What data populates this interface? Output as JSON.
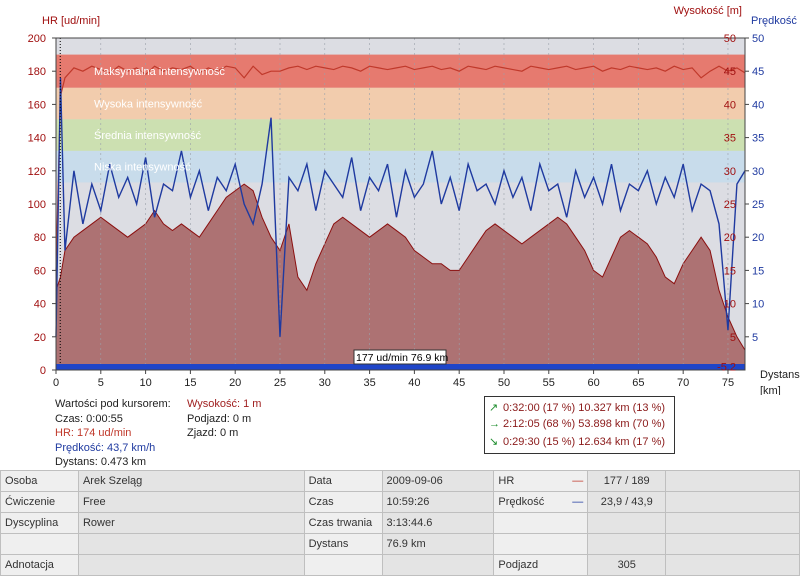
{
  "colors": {
    "hr_line": "#c0392b",
    "speed_line": "#1f3aa0",
    "altitude_fill": "#a45f5f",
    "zone_max": "#e8695a",
    "zone_high": "#f6c9a3",
    "zone_mid": "#c9e0a8",
    "zone_low": "#c4dcec",
    "zone_base": "#dcdde3"
  },
  "chart_data": {
    "type": "line",
    "axes": {
      "left_label": "HR [ud/min]",
      "right_label_1": "Wysokość [m]",
      "right_label_2": "Prędkość [",
      "x_label_1": "Dystans",
      "x_label_2": "[km]"
    },
    "left_ticks": [
      "0",
      "20",
      "40",
      "60",
      "80",
      "100",
      "120",
      "140",
      "160",
      "180",
      "200"
    ],
    "alt_ticks": [
      "-5.2",
      "5",
      "10",
      "15",
      "20",
      "25",
      "30",
      "35",
      "40",
      "45",
      "50"
    ],
    "speed_ticks": [
      "5",
      "10",
      "15",
      "20",
      "25",
      "30",
      "35",
      "40",
      "45",
      "50"
    ],
    "x_ticks": [
      "0",
      "5",
      "10",
      "15",
      "20",
      "25",
      "30",
      "35",
      "40",
      "45",
      "50",
      "55",
      "60",
      "65",
      "70",
      "75"
    ],
    "xlim": [
      0,
      76.9
    ],
    "hr_range": [
      0,
      200
    ],
    "speed_range": [
      0,
      50
    ],
    "zones": [
      {
        "name": "Maksymalna intensywność",
        "from": 170,
        "to": 190
      },
      {
        "name": "Wysoka intensywność",
        "from": 151,
        "to": 170
      },
      {
        "name": "Średnia intensywność",
        "from": 132,
        "to": 151
      },
      {
        "name": "Niska intensywność",
        "from": 113,
        "to": 132
      }
    ],
    "hr_series_name": "HR",
    "hr": {
      "x": [
        0,
        0.5,
        1,
        2,
        3,
        4,
        5,
        6,
        7,
        8,
        9,
        10,
        11,
        12,
        13,
        14,
        15,
        16,
        17,
        18,
        19,
        20,
        21,
        22,
        23,
        24,
        25,
        26,
        27,
        28,
        29,
        30,
        31,
        32,
        33,
        34,
        35,
        36,
        37,
        38,
        39,
        40,
        41,
        42,
        43,
        44,
        45,
        46,
        47,
        48,
        49,
        50,
        51,
        52,
        53,
        54,
        55,
        56,
        57,
        58,
        59,
        60,
        61,
        62,
        63,
        64,
        65,
        66,
        67,
        68,
        69,
        70,
        71,
        72,
        73,
        74,
        75,
        76,
        76.9
      ],
      "y": [
        60,
        165,
        176,
        182,
        180,
        183,
        181,
        179,
        183,
        180,
        182,
        178,
        183,
        180,
        182,
        181,
        183,
        179,
        182,
        180,
        183,
        182,
        176,
        183,
        178,
        180,
        180,
        182,
        183,
        181,
        183,
        182,
        181,
        183,
        182,
        180,
        183,
        182,
        181,
        182,
        183,
        181,
        182,
        183,
        181,
        182,
        180,
        183,
        182,
        181,
        183,
        182,
        181,
        180,
        183,
        182,
        181,
        182,
        183,
        181,
        182,
        183,
        180,
        182,
        181,
        183,
        182,
        181,
        182,
        180,
        183,
        181,
        182,
        176,
        180,
        183,
        180,
        182,
        179
      ]
    },
    "speed_series_name": "Prędkość",
    "speed": {
      "x": [
        0,
        0.5,
        1,
        2,
        3,
        4,
        5,
        6,
        7,
        8,
        9,
        10,
        11,
        12,
        13,
        14,
        15,
        16,
        17,
        18,
        19,
        20,
        21,
        22,
        23,
        24,
        25,
        26,
        27,
        28,
        29,
        30,
        31,
        32,
        33,
        34,
        35,
        36,
        37,
        38,
        39,
        40,
        41,
        42,
        43,
        44,
        45,
        46,
        47,
        48,
        49,
        50,
        51,
        52,
        53,
        54,
        55,
        56,
        57,
        58,
        59,
        60,
        61,
        62,
        63,
        64,
        65,
        66,
        67,
        68,
        69,
        70,
        71,
        72,
        73,
        74,
        75,
        76,
        76.9
      ],
      "y": [
        5,
        44,
        18,
        30,
        22,
        28,
        24,
        31,
        26,
        29,
        25,
        32,
        23,
        28,
        27,
        33,
        26,
        30,
        24,
        29,
        27,
        31,
        25,
        22,
        28,
        38,
        5,
        29,
        27,
        31,
        24,
        30,
        28,
        26,
        32,
        24,
        29,
        27,
        31,
        23,
        30,
        26,
        28,
        33,
        25,
        29,
        24,
        31,
        27,
        28,
        25,
        30,
        26,
        29,
        24,
        31,
        27,
        28,
        23,
        30,
        26,
        29,
        25,
        31,
        24,
        28,
        27,
        30,
        25,
        29,
        26,
        31,
        24,
        28,
        27,
        22,
        6,
        28,
        30
      ]
    },
    "altitude_series_name": "Wysokość",
    "altitude": {
      "x": [
        0,
        0.5,
        1,
        2,
        3,
        4,
        5,
        6,
        7,
        8,
        9,
        10,
        11,
        12,
        13,
        14,
        15,
        16,
        17,
        18,
        19,
        20,
        21,
        22,
        23,
        24,
        25,
        26,
        27,
        28,
        29,
        30,
        31,
        32,
        33,
        34,
        35,
        36,
        37,
        38,
        39,
        40,
        41,
        42,
        43,
        44,
        45,
        46,
        47,
        48,
        49,
        50,
        51,
        52,
        53,
        54,
        55,
        56,
        57,
        58,
        59,
        60,
        61,
        62,
        63,
        64,
        65,
        66,
        67,
        68,
        69,
        70,
        71,
        72,
        73,
        74,
        75,
        76,
        76.9
      ],
      "y": [
        12,
        14,
        18,
        20,
        21,
        22,
        23,
        22,
        21,
        20,
        21,
        22,
        24,
        22,
        21,
        22,
        21,
        20,
        22,
        24,
        26,
        27,
        28,
        27,
        23,
        20,
        18,
        22,
        14,
        12,
        16,
        19,
        22,
        23,
        22,
        21,
        20,
        21,
        22,
        21,
        20,
        18,
        17,
        16,
        16,
        15,
        15,
        17,
        19,
        21,
        22,
        21,
        20,
        19,
        20,
        21,
        22,
        23,
        22,
        20,
        18,
        15,
        14,
        17,
        20,
        21,
        20,
        19,
        17,
        14,
        13,
        16,
        18,
        20,
        18,
        12,
        8,
        5,
        3
      ]
    },
    "cursor_label": "177 ud/min 76.9 km",
    "cursor_x": 0.473
  },
  "cursor_values": {
    "title": "Wartości pod kursorem:",
    "time": "Czas: 0:00:55",
    "hr": "HR: 174 ud/min",
    "speed": "Prędkość: 43,7 km/h",
    "distance": "Dystans: 0.473 km",
    "altitude": "Wysokość: 1 m",
    "climb": "Podjazd: 0 m",
    "descent": "Zjazd: 0 m"
  },
  "summary": [
    {
      "arrow": "↗",
      "arrow_color": "#1c8c2c",
      "text": "0:32:00  (17 %)  10.327 km  (13 %)"
    },
    {
      "arrow": "→",
      "arrow_color": "#1c8c2c",
      "text": "2:12:05  (68 %)  53.898 km  (70 %)"
    },
    {
      "arrow": "↘",
      "arrow_color": "#1c8c2c",
      "text": "0:29:30  (15 %)  12.634 km  (17 %)"
    }
  ],
  "info": {
    "osoba_label": "Osoba",
    "osoba": "Arek Szeląg",
    "data_label": "Data",
    "data": "2009-09-06",
    "hr_label": "HR",
    "hr_value": "177 / 189",
    "cwiczenie_label": "Ćwiczenie",
    "cwiczenie": "Free",
    "czas_label": "Czas",
    "czas": "10:59:26",
    "predkosc_label": "Prędkość",
    "predkosc_value": "23,9 / 43,9",
    "dyscyplina_label": "Dyscyplina",
    "dyscyplina": "Rower",
    "czas_trwania_label": "Czas trwania",
    "czas_trwania": "3:13:44.6",
    "dystans_label": "Dystans",
    "dystans": "76.9 km",
    "adnotacja_label": "Adnotacja",
    "podjazd_label": "Podjazd",
    "podjazd_value": "305"
  }
}
